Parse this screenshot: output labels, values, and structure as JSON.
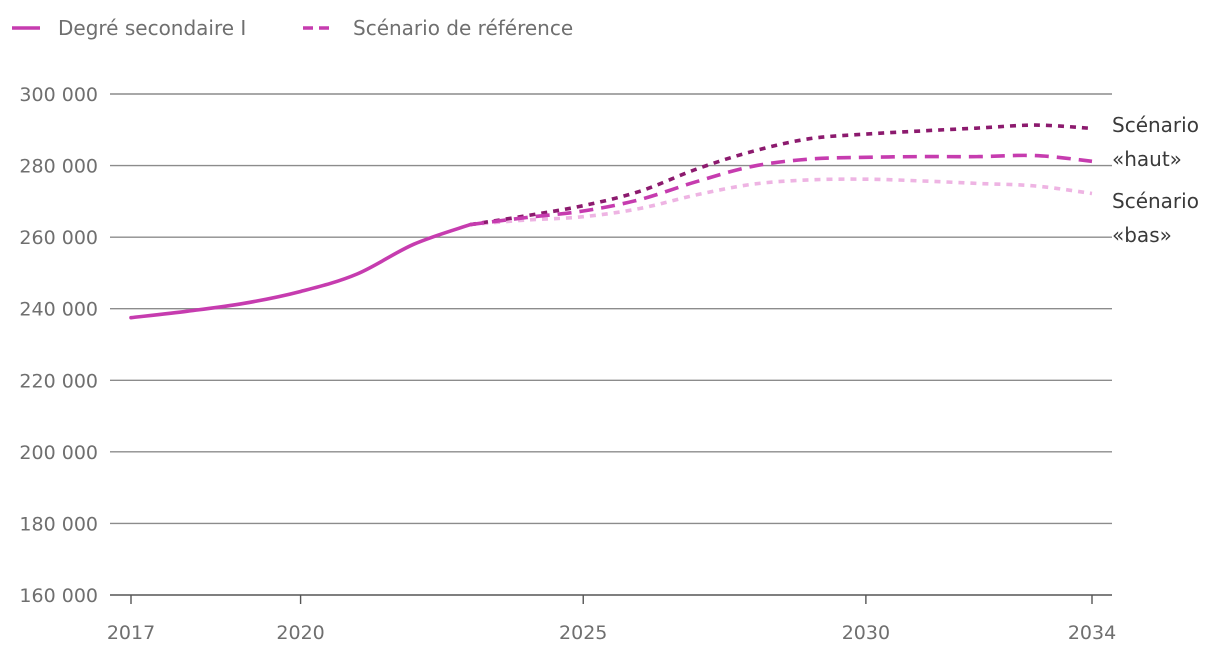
{
  "chart_data": {
    "type": "line",
    "title": "",
    "xlabel": "",
    "ylabel": "",
    "xlim": [
      2017,
      2034
    ],
    "ylim": [
      160000,
      300000
    ],
    "xticks": [
      2017,
      2020,
      2025,
      2030,
      2034
    ],
    "xtick_labels": [
      "2017",
      "2020",
      "2025",
      "2030",
      "2034"
    ],
    "yticks": [
      160000,
      180000,
      200000,
      220000,
      240000,
      260000,
      280000,
      300000
    ],
    "ytick_labels": [
      "160 000",
      "180 000",
      "200 000",
      "220 000",
      "240 000",
      "260 000",
      "280 000",
      "300 000"
    ],
    "grid": true,
    "legend": {
      "placement": "top-left",
      "entries": [
        {
          "label": "Degré secondaire I",
          "style": "solid",
          "color": "#c63caf"
        },
        {
          "label": "Scénario de référence",
          "style": "dashed",
          "color": "#c63caf"
        }
      ]
    },
    "series": [
      {
        "name": "Degré secondaire I",
        "style": "solid",
        "color": "#c63caf",
        "x": [
          2017,
          2018,
          2019,
          2020,
          2021,
          2022,
          2023
        ],
        "values": [
          237500,
          239300,
          241500,
          244800,
          249700,
          258000,
          263500
        ]
      },
      {
        "name": "Scénario haut",
        "style": "dotted",
        "color": "#8c1a6e",
        "x": [
          2023,
          2024,
          2025,
          2026,
          2027,
          2028,
          2029,
          2030,
          2031,
          2032,
          2033,
          2034
        ],
        "values": [
          263500,
          266000,
          268800,
          272800,
          279000,
          284000,
          287500,
          288800,
          289700,
          290500,
          291300,
          290400
        ]
      },
      {
        "name": "Scénario de référence",
        "style": "dashed",
        "color": "#c63caf",
        "x": [
          2023,
          2024,
          2025,
          2026,
          2027,
          2028,
          2029,
          2030,
          2031,
          2032,
          2033,
          2034
        ],
        "values": [
          263500,
          265500,
          267300,
          270500,
          275500,
          279800,
          281800,
          282300,
          282500,
          282500,
          282800,
          281200
        ]
      },
      {
        "name": "Scénario bas",
        "style": "dotted",
        "color": "#eeb4e3",
        "x": [
          2023,
          2024,
          2025,
          2026,
          2027,
          2028,
          2029,
          2030,
          2031,
          2032,
          2033,
          2034
        ],
        "values": [
          263500,
          264800,
          265700,
          268000,
          271800,
          274800,
          276000,
          276200,
          275700,
          275000,
          274300,
          272200
        ]
      }
    ],
    "annotations": [
      {
        "lines": [
          "Scénario",
          "«haut»"
        ],
        "series": "Scénario haut"
      },
      {
        "lines": [
          "Scénario",
          "«bas»"
        ],
        "series": "Scénario bas"
      }
    ]
  }
}
